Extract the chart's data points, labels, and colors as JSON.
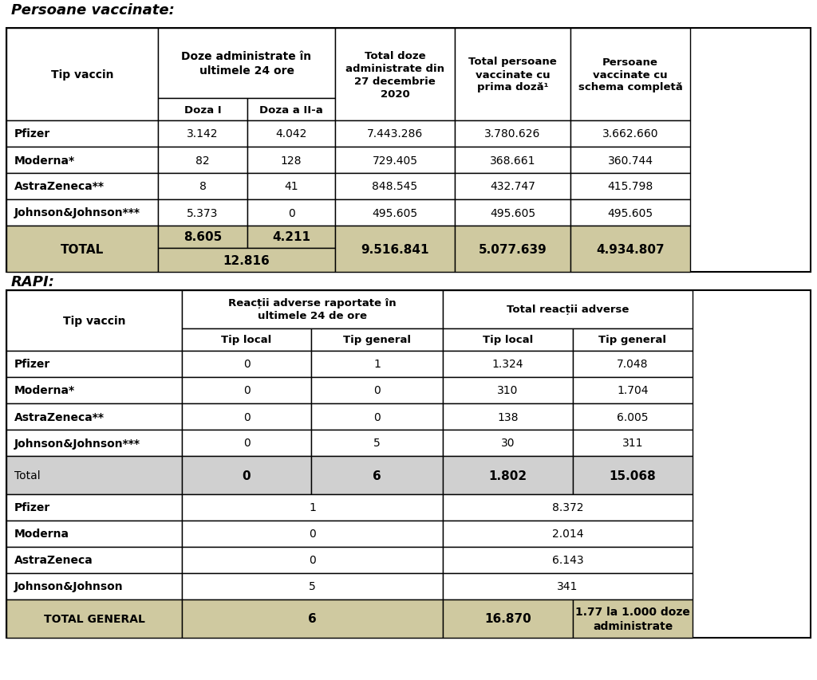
{
  "title1": "Persoane vaccinate:",
  "title2": "RAPI:",
  "bg_color": "#ffffff",
  "tan_color": "#cfc9a0",
  "gray_color": "#d0d0d0",
  "white_color": "#ffffff",
  "table1": {
    "rows": [
      [
        "Pfizer",
        "3.142",
        "4.042",
        "7.443.286",
        "3.780.626",
        "3.662.660"
      ],
      [
        "Moderna*",
        "82",
        "128",
        "729.405",
        "368.661",
        "360.744"
      ],
      [
        "AstraZeneca**",
        "8",
        "41",
        "848.545",
        "432.747",
        "415.798"
      ],
      [
        "Johnson&Johnson***",
        "5.373",
        "0",
        "495.605",
        "495.605",
        "495.605"
      ]
    ],
    "total_row": [
      "TOTAL",
      "8.605",
      "4.211",
      "9.516.841",
      "5.077.639",
      "4.934.807"
    ],
    "total_combined": "12.816"
  },
  "table2": {
    "rows": [
      [
        "Pfizer",
        "0",
        "1",
        "1.324",
        "7.048"
      ],
      [
        "Moderna*",
        "0",
        "0",
        "310",
        "1.704"
      ],
      [
        "AstraZeneca**",
        "0",
        "0",
        "138",
        "6.005"
      ],
      [
        "Johnson&Johnson***",
        "0",
        "5",
        "30",
        "311"
      ]
    ],
    "total_row": [
      "Total",
      "0",
      "6",
      "1.802",
      "15.068"
    ],
    "rows2": [
      [
        "Pfizer",
        "1",
        "8.372"
      ],
      [
        "Moderna",
        "0",
        "2.014"
      ],
      [
        "AstraZeneca",
        "0",
        "6.143"
      ],
      [
        "Johnson&Johnson",
        "5",
        "341"
      ]
    ],
    "total_general_row": [
      "TOTAL GENERAL",
      "6",
      "16.870",
      "1.77 la 1.000 doze\nadministrate"
    ]
  }
}
